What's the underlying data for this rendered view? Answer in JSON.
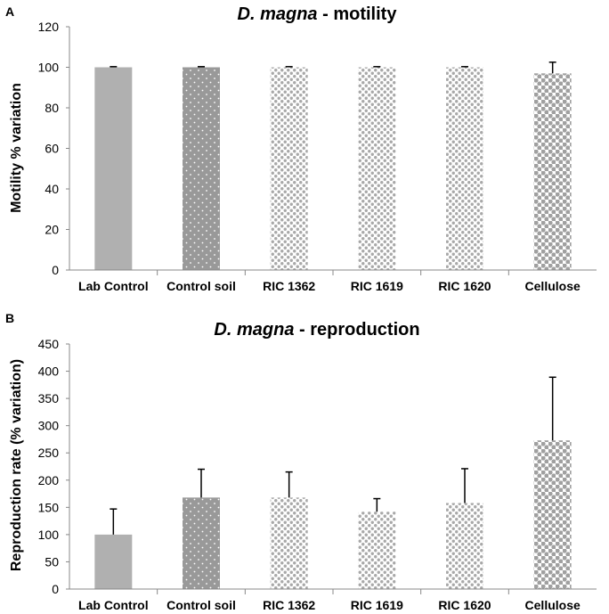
{
  "chart_data": [
    {
      "type": "bar",
      "panel_label": "A",
      "title_italic": "D. magna",
      "title_rest": " - motility",
      "ylabel": "Motility % variation",
      "xlabel": "",
      "ylim": [
        0,
        120
      ],
      "yticks": [
        0,
        20,
        40,
        60,
        80,
        100,
        120
      ],
      "categories": [
        "Lab Control",
        "Control soil",
        "RIC 1362",
        "RIC 1619",
        "RIC 1620",
        "Cellulose"
      ],
      "values": [
        100,
        100,
        100,
        100,
        100,
        97
      ],
      "errors": [
        0.3,
        0.3,
        0.3,
        0.3,
        0.3,
        5.5
      ],
      "patterns": [
        "solid",
        "dots-small",
        "dots-medium",
        "dots-medium",
        "dots-medium",
        "dots-large"
      ]
    },
    {
      "type": "bar",
      "panel_label": "B",
      "title_italic": "D. magna",
      "title_rest": " - reproduction",
      "ylabel": "Reproduction rate (% variation)",
      "xlabel": "",
      "ylim": [
        0,
        450
      ],
      "yticks": [
        0,
        50,
        100,
        150,
        200,
        250,
        300,
        350,
        400,
        450
      ],
      "categories": [
        "Lab Control",
        "Control soil",
        "RIC 1362",
        "RIC 1619",
        "RIC 1620",
        "Cellulose"
      ],
      "values": [
        100,
        168,
        168,
        142,
        158,
        273
      ],
      "errors": [
        47,
        52,
        47,
        24,
        63,
        116
      ],
      "patterns": [
        "solid",
        "dots-small",
        "dots-medium",
        "dots-medium",
        "dots-medium",
        "dots-large"
      ]
    }
  ],
  "colors": {
    "bar": "#b0b0b0",
    "bar_dark": "#999999",
    "dot": "#ffffff",
    "axis": "#888888",
    "error": "#000000"
  }
}
